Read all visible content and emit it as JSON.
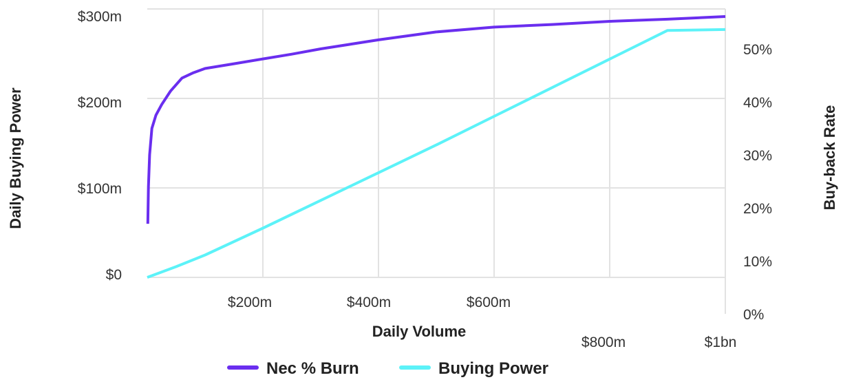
{
  "chart_data": {
    "type": "line",
    "xlabel": "Daily Volume",
    "ylabel": "Daily Buying Power",
    "y2label": "Buy-back Rate",
    "x_ticks": [
      "$200m",
      "$400m",
      "$600m",
      "$800m",
      "$1bn"
    ],
    "y_ticks": [
      "$0",
      "$100m",
      "$200m",
      "$300m"
    ],
    "y2_ticks": [
      "0%",
      "10%",
      "20%",
      "30%",
      "40%",
      "50%"
    ],
    "xlim": [
      0,
      1000
    ],
    "ylim": [
      0,
      300
    ],
    "y2lim": [
      0,
      55
    ],
    "grid": true,
    "legend_position": "bottom-center",
    "series": [
      {
        "name": "Nec % Burn",
        "axis": "right",
        "color": "#6A2EEF",
        "x": [
          1,
          2,
          4,
          8,
          15,
          25,
          40,
          60,
          80,
          100,
          150,
          200,
          250,
          300,
          400,
          500,
          600,
          700,
          800,
          900,
          1000
        ],
        "y": [
          17,
          24,
          30,
          35,
          37.5,
          39.5,
          42,
          44.5,
          45.5,
          46.3,
          47.2,
          48.1,
          49,
          50,
          51.7,
          53.2,
          54.1,
          54.6,
          55.2,
          55.6,
          56.1
        ]
      },
      {
        "name": "Buying Power",
        "axis": "left",
        "color": "#5CF2F8",
        "x": [
          0,
          50,
          100,
          200,
          300,
          400,
          500,
          600,
          700,
          800,
          900,
          1000
        ],
        "y": [
          0,
          12,
          25,
          55,
          86,
          117,
          148,
          180,
          212,
          244,
          276,
          277
        ]
      }
    ]
  }
}
